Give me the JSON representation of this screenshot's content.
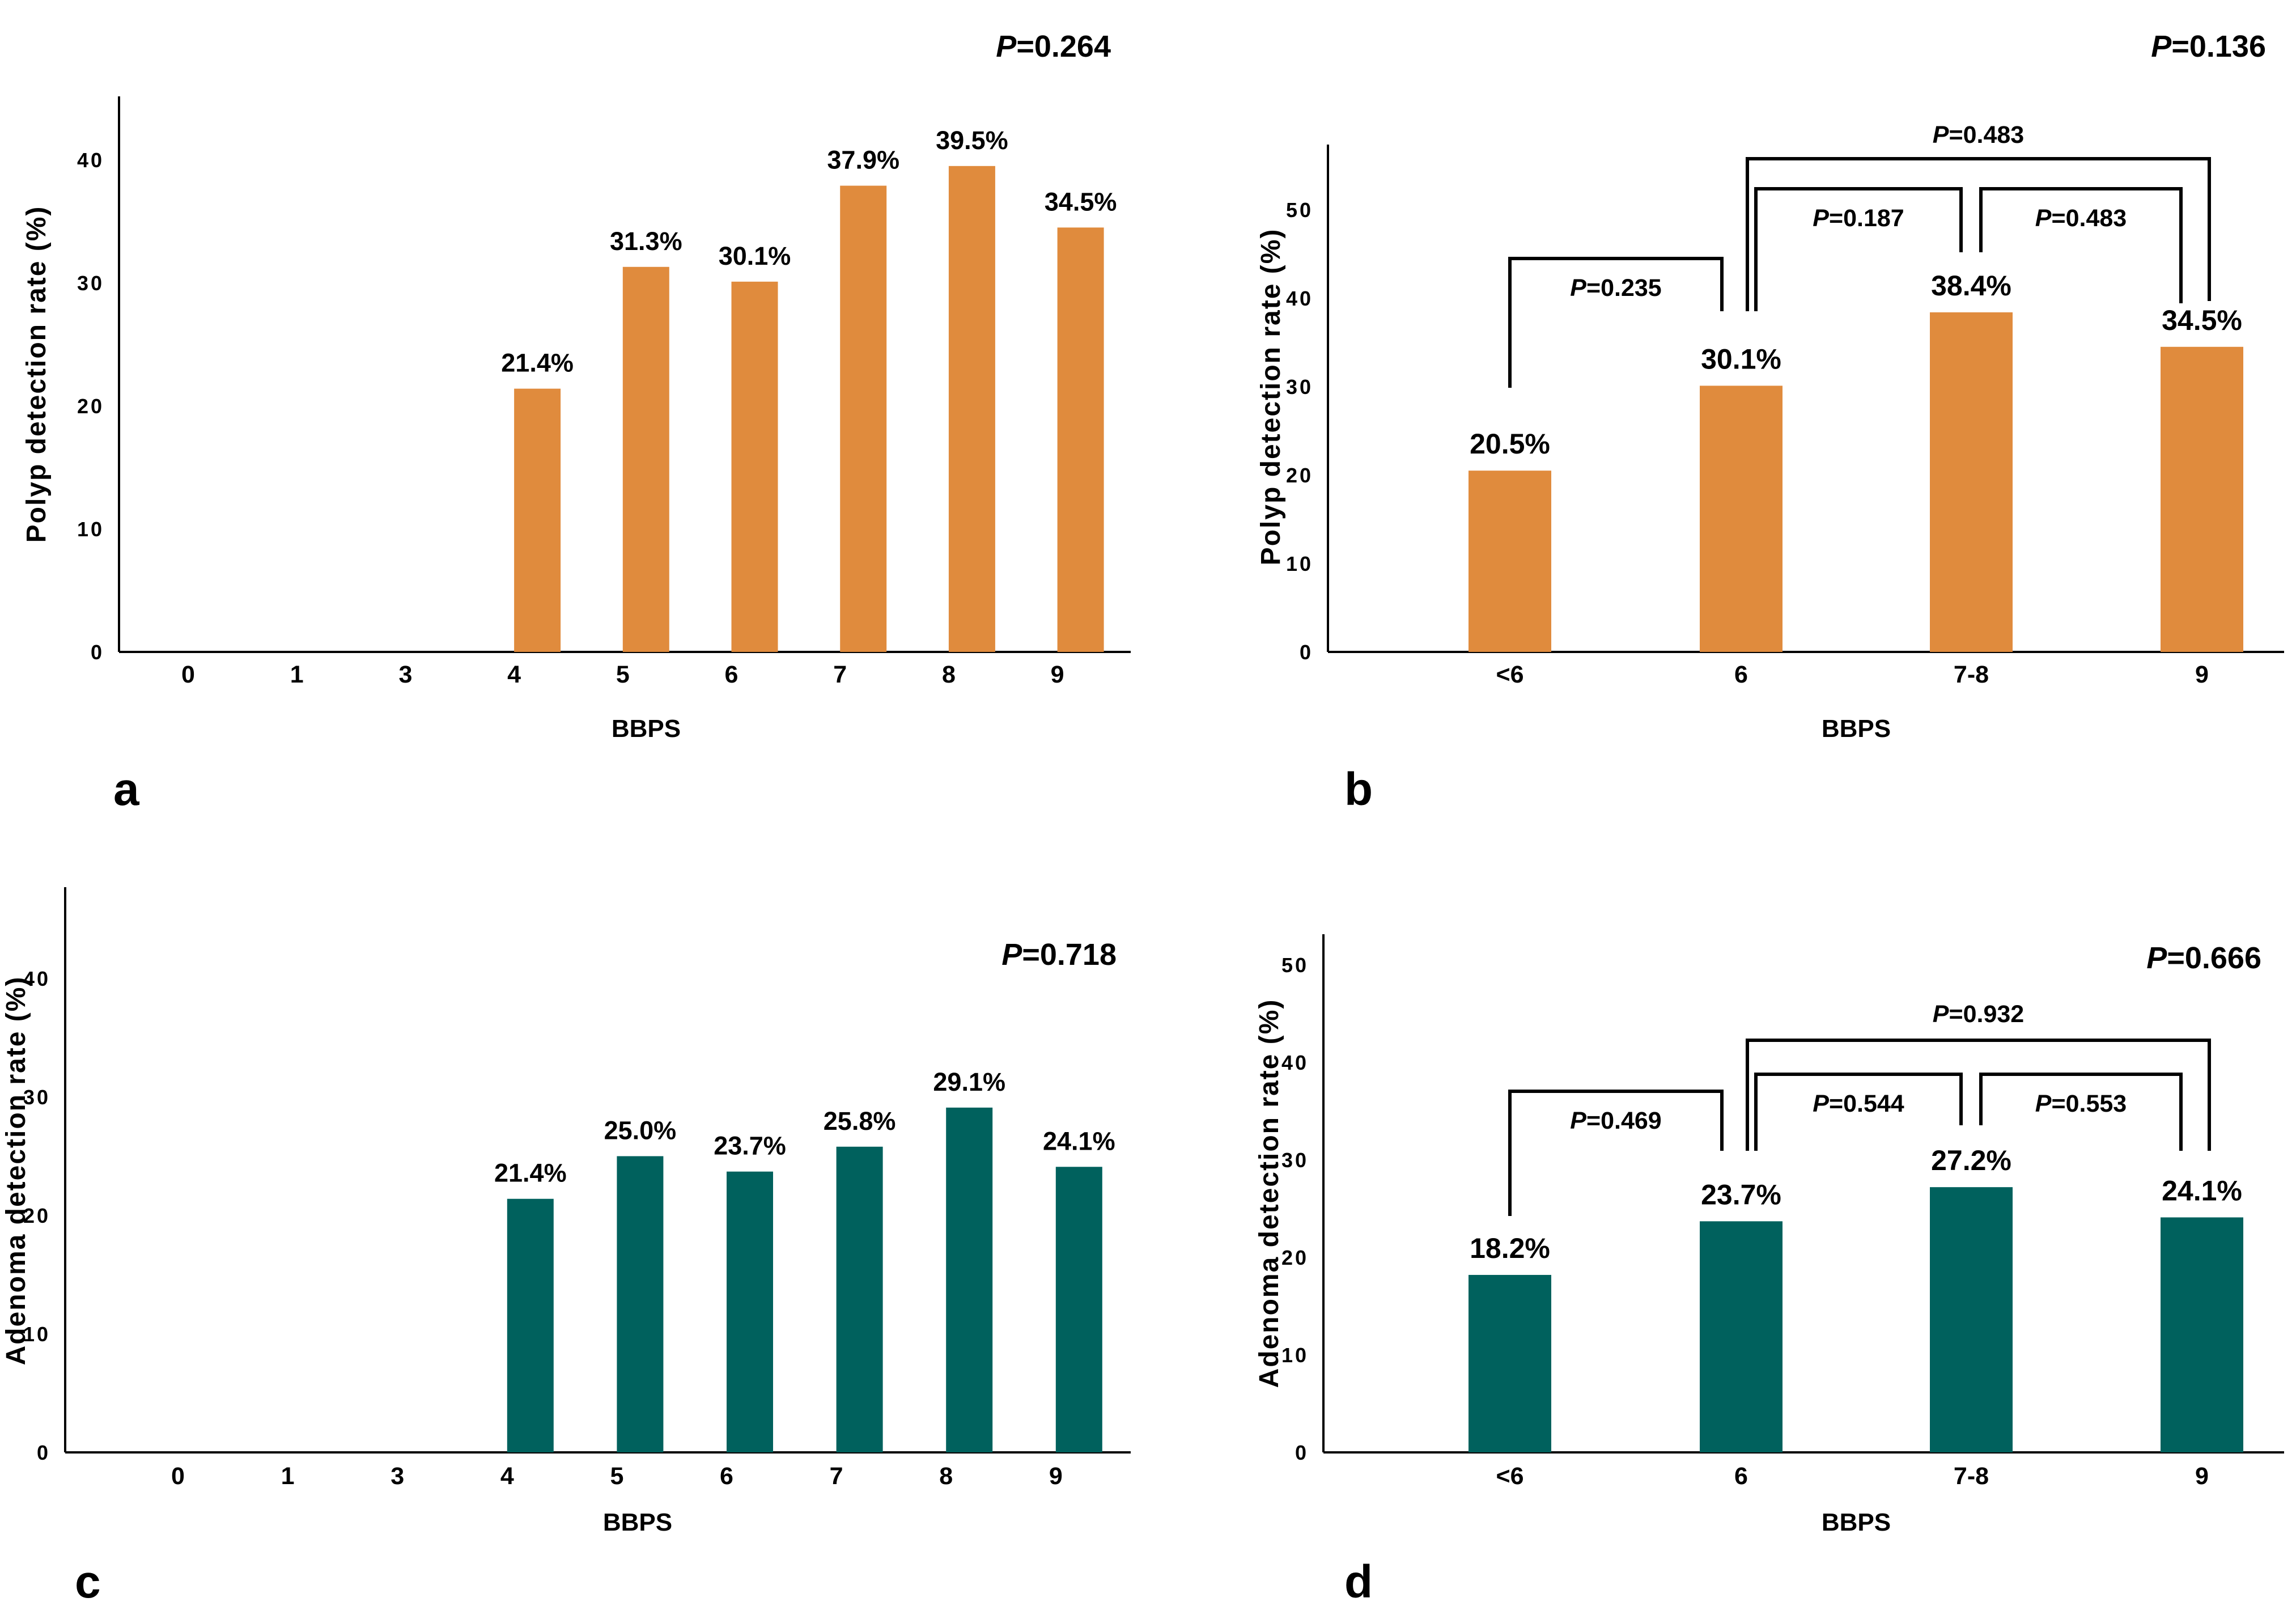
{
  "figure": {
    "background": "#ffffff",
    "axis_color": "#000000",
    "text_color": "#000000"
  },
  "chart_data": [
    {
      "type": "bar",
      "panel_letter": "a",
      "overall_p_value": "P=0.264",
      "xlabel": "BBPS",
      "ylabel": "Polyp detection rate (%)",
      "bar_color": "#E08B3D",
      "categories": [
        "0",
        "1",
        "3",
        "4",
        "5",
        "6",
        "7",
        "8",
        "9"
      ],
      "values": [
        null,
        null,
        null,
        21.4,
        31.3,
        30.1,
        37.9,
        39.5,
        34.5
      ],
      "bar_labels": [
        "",
        "",
        "",
        "21.4%",
        "31.3%",
        "30.1%",
        "37.9%",
        "39.5%",
        "34.5%"
      ],
      "yticks": [
        0,
        10,
        20,
        30,
        40
      ],
      "ylim": [
        0,
        45
      ],
      "grid": false,
      "legend": null,
      "comparisons": []
    },
    {
      "type": "bar",
      "panel_letter": "b",
      "overall_p_value": "P=0.136",
      "xlabel": "BBPS",
      "ylabel": "Polyp detection rate (%)",
      "bar_color": "#E08B3D",
      "categories": [
        "<6",
        "6",
        "7-8",
        "9"
      ],
      "values": [
        20.5,
        30.1,
        38.4,
        34.5
      ],
      "bar_labels": [
        "20.5%",
        "30.1%",
        "38.4%",
        "34.5%"
      ],
      "yticks": [
        0,
        10,
        20,
        30,
        40,
        50
      ],
      "ylim": [
        0,
        57
      ],
      "grid": false,
      "legend": null,
      "comparisons": [
        {
          "between": [
            "<6",
            "6"
          ],
          "p": "P=0.235"
        },
        {
          "between": [
            "6",
            "7-8"
          ],
          "p": "P=0.187"
        },
        {
          "between": [
            "7-8",
            "9"
          ],
          "p": "P=0.483"
        },
        {
          "between": [
            "6",
            "9"
          ],
          "p": "P=0.483"
        }
      ]
    },
    {
      "type": "bar",
      "panel_letter": "c",
      "overall_p_value": "P=0.718",
      "xlabel": "BBPS",
      "ylabel": "Adenoma detection rate (%)",
      "bar_color": "#00615D",
      "categories": [
        "0",
        "1",
        "3",
        "4",
        "5",
        "6",
        "7",
        "8",
        "9"
      ],
      "values": [
        null,
        null,
        null,
        21.4,
        25.0,
        23.7,
        25.8,
        29.1,
        24.1
      ],
      "bar_labels": [
        "",
        "",
        "",
        "21.4%",
        "25.0%",
        "23.7%",
        "25.8%",
        "29.1%",
        "24.1%"
      ],
      "yticks": [
        0,
        10,
        20,
        30,
        40
      ],
      "ylim": [
        0,
        48
      ],
      "grid": false,
      "legend": null,
      "comparisons": []
    },
    {
      "type": "bar",
      "panel_letter": "d",
      "overall_p_value": "P=0.666",
      "xlabel": "BBPS",
      "ylabel": "Adenoma detection rate (%)",
      "bar_color": "#00615D",
      "categories": [
        "<6",
        "6",
        "7-8",
        "9"
      ],
      "values": [
        18.2,
        23.7,
        27.2,
        24.1
      ],
      "bar_labels": [
        "18.2%",
        "23.7%",
        "27.2%",
        "24.1%"
      ],
      "yticks": [
        0,
        10,
        20,
        30,
        40,
        50
      ],
      "ylim": [
        0,
        53
      ],
      "grid": false,
      "legend": null,
      "comparisons": [
        {
          "between": [
            "<6",
            "6"
          ],
          "p": "P=0.469"
        },
        {
          "between": [
            "6",
            "7-8"
          ],
          "p": "P=0.544"
        },
        {
          "between": [
            "7-8",
            "9"
          ],
          "p": "P=0.553"
        },
        {
          "between": [
            "6",
            "9"
          ],
          "p": "P=0.932"
        }
      ]
    }
  ]
}
